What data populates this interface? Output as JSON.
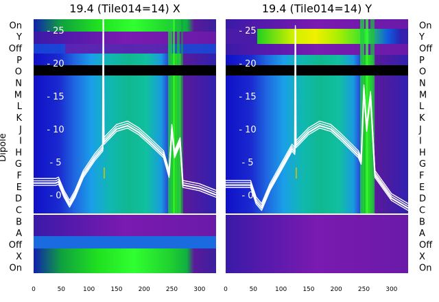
{
  "chart_data": [
    {
      "type": "line",
      "title": "19.4 (Tile014=14) X",
      "ylabel": "Dipole",
      "xlim": [
        0,
        330
      ],
      "ylim": [
        -5,
        27
      ],
      "xticks": [
        0,
        50,
        100,
        150,
        200,
        250,
        300
      ],
      "yticks": [
        0,
        5,
        10,
        15,
        20,
        25
      ],
      "categories": [
        "On",
        "Y",
        "Off",
        "P",
        "O",
        "N",
        "M",
        "L",
        "K",
        "J",
        "I",
        "H",
        "G",
        "F",
        "E",
        "D",
        "C",
        "B",
        "A",
        "Off",
        "X",
        "On"
      ],
      "background": "heatmap (spectrogram) with black band near y=19",
      "series": [
        {
          "values": [
            [
              0,
              1.8
            ],
            [
              40,
              1.8
            ],
            [
              45,
              2.0
            ],
            [
              55,
              0
            ],
            [
              65,
              -1.5
            ],
            [
              75,
              0
            ],
            [
              90,
              3
            ],
            [
              110,
              5.5
            ],
            [
              125,
              7
            ],
            [
              126,
              27
            ],
            [
              127,
              8
            ],
            [
              150,
              10
            ],
            [
              170,
              10.5
            ],
            [
              190,
              9.5
            ],
            [
              210,
              8
            ],
            [
              235,
              6
            ],
            [
              245,
              3
            ],
            [
              250,
              10
            ],
            [
              255,
              6
            ],
            [
              265,
              8
            ],
            [
              270,
              1.5
            ],
            [
              300,
              1
            ],
            [
              330,
              0
            ]
          ]
        }
      ]
    },
    {
      "type": "line",
      "title": "19.4 (Tile014=14) Y",
      "xlim": [
        0,
        330
      ],
      "ylim": [
        -5,
        27
      ],
      "xticks": [
        0,
        50,
        100,
        150,
        200,
        250,
        300
      ],
      "yticks": [
        0,
        5,
        10,
        15,
        20,
        25
      ],
      "categories": [
        "On",
        "Y",
        "Off",
        "P",
        "O",
        "N",
        "M",
        "L",
        "K",
        "J",
        "I",
        "H",
        "G",
        "F",
        "E",
        "D",
        "C",
        "B",
        "A",
        "Off",
        "X",
        "On"
      ],
      "background": "heatmap (spectrogram) with black band near y=19",
      "series": [
        {
          "values": [
            [
              0,
              1.5
            ],
            [
              40,
              1.5
            ],
            [
              45,
              1.5
            ],
            [
              55,
              -1
            ],
            [
              65,
              -2
            ],
            [
              80,
              1
            ],
            [
              100,
              4
            ],
            [
              120,
              7
            ],
            [
              125,
              6.5
            ],
            [
              126,
              25
            ],
            [
              127,
              7.5
            ],
            [
              150,
              9.5
            ],
            [
              170,
              10.5
            ],
            [
              190,
              10
            ],
            [
              210,
              8.5
            ],
            [
              240,
              6
            ],
            [
              245,
              5
            ],
            [
              250,
              16
            ],
            [
              255,
              10
            ],
            [
              262,
              15
            ],
            [
              270,
              3
            ],
            [
              300,
              -0.5
            ],
            [
              330,
              -2
            ]
          ]
        }
      ]
    }
  ]
}
